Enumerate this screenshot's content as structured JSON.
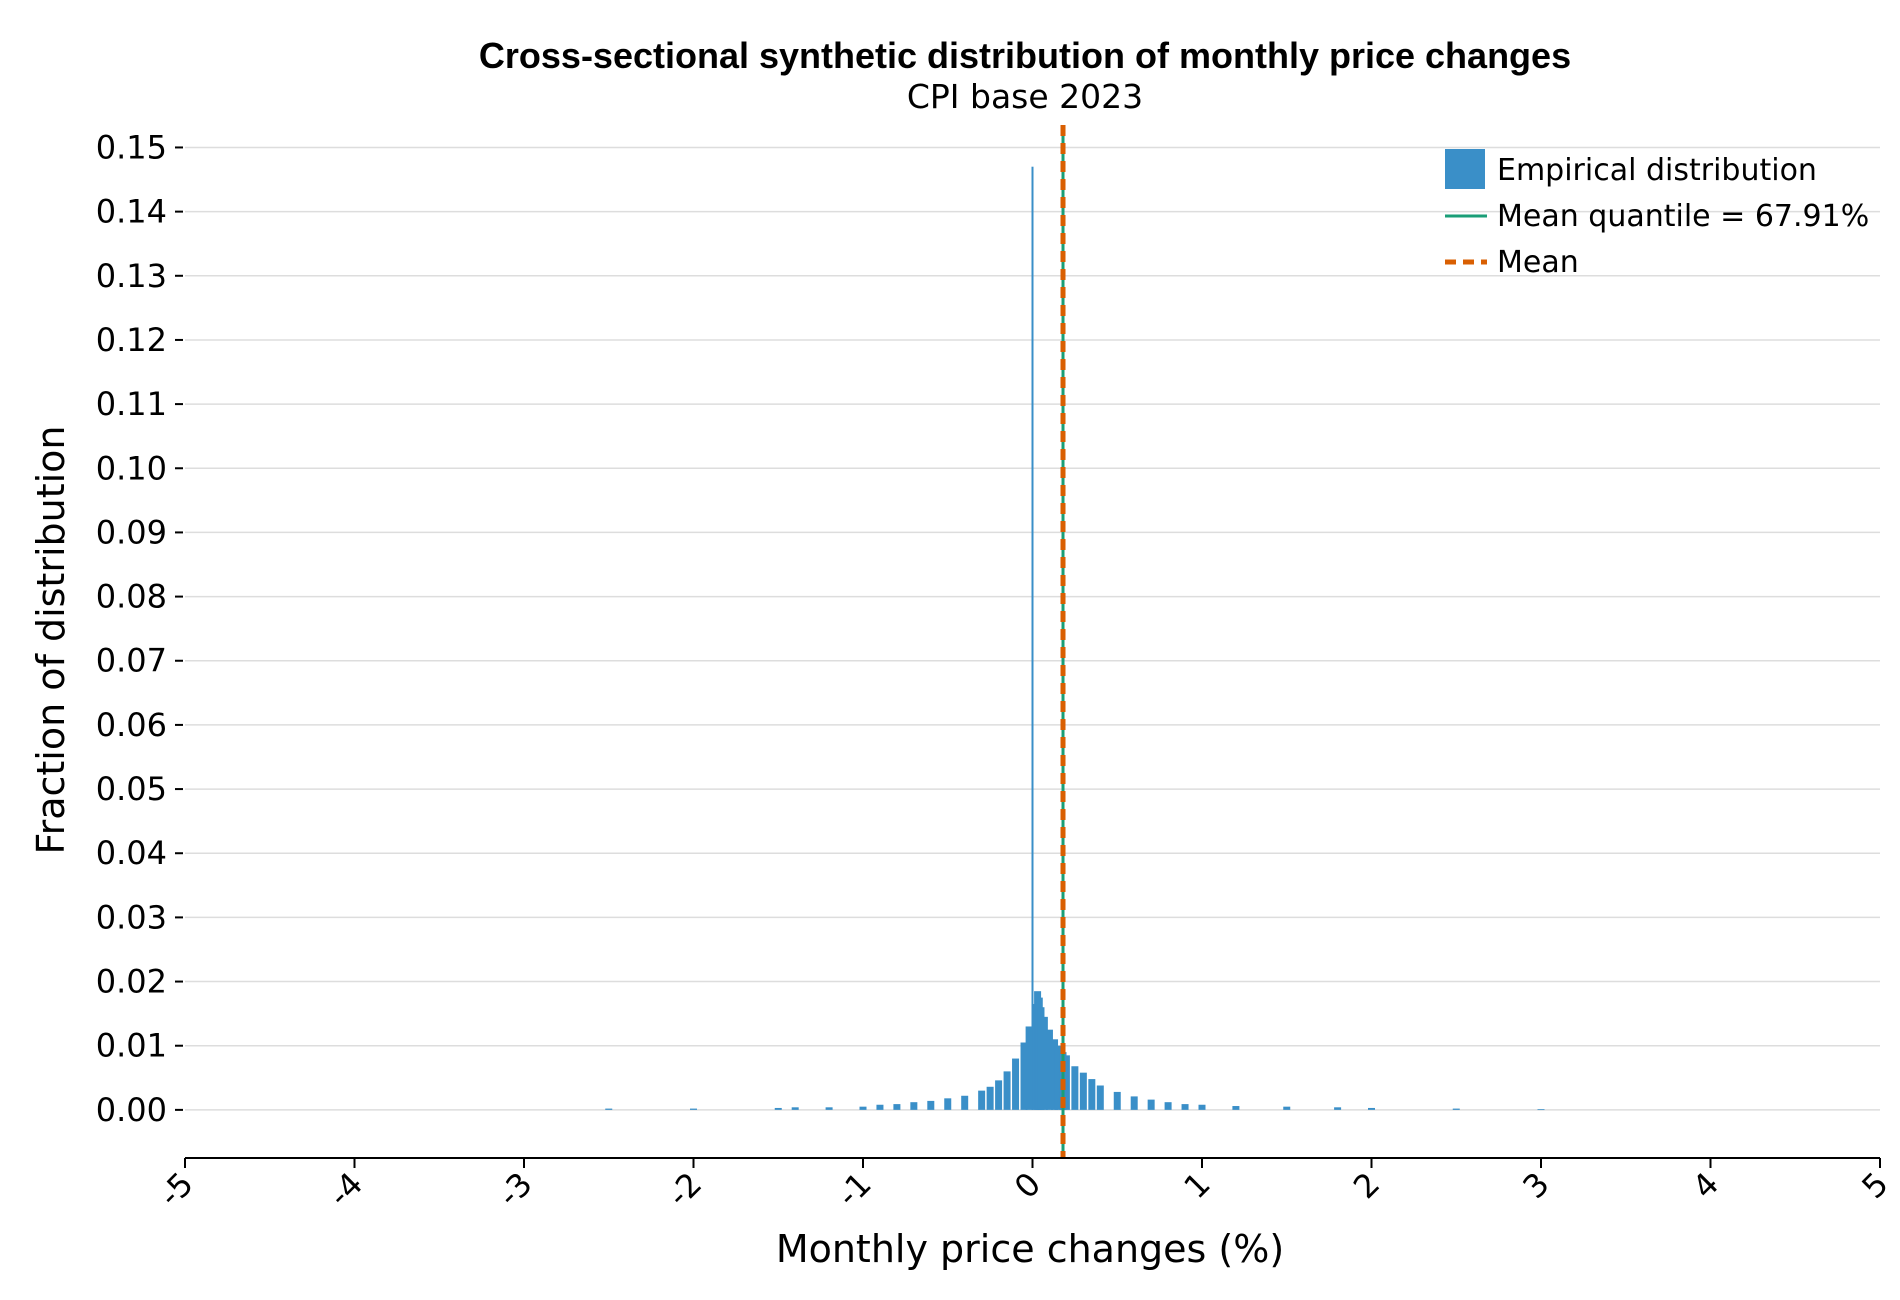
{
  "chart_data": {
    "type": "bar",
    "title": "Cross-sectional synthetic distribution of monthly price changes",
    "subtitle": "CPI base 2023",
    "xlabel": "Monthly price changes (%)",
    "ylabel": "Fraction of distribution",
    "xlim": [
      -5,
      5
    ],
    "ylim": [
      -0.0075,
      0.1535
    ],
    "x_ticks": [
      "-5",
      "-4",
      "-3",
      "-2",
      "-1",
      "0",
      "1",
      "2",
      "3",
      "4",
      "5"
    ],
    "x_tick_values": [
      -5,
      -4,
      -3,
      -2,
      -1,
      0,
      1,
      2,
      3,
      4,
      5
    ],
    "y_ticks": [
      "0.00",
      "0.01",
      "0.02",
      "0.03",
      "0.04",
      "0.05",
      "0.06",
      "0.07",
      "0.08",
      "0.09",
      "0.10",
      "0.11",
      "0.12",
      "0.13",
      "0.14",
      "0.15"
    ],
    "y_tick_values": [
      0,
      0.01,
      0.02,
      0.03,
      0.04,
      0.05,
      0.06,
      0.07,
      0.08,
      0.09,
      0.1,
      0.11,
      0.12,
      0.13,
      0.14,
      0.15
    ],
    "grid": "horizontal",
    "legend_position": "top-right",
    "series": [
      {
        "name": "Empirical distribution",
        "kind": "histogram",
        "color": "#3a8fc8",
        "x": [
          -2.5,
          -2.0,
          -1.5,
          -1.4,
          -1.2,
          -1.0,
          -0.9,
          -0.8,
          -0.7,
          -0.6,
          -0.5,
          -0.4,
          -0.3,
          -0.25,
          -0.2,
          -0.15,
          -0.1,
          -0.05,
          -0.02,
          0.0,
          0.02,
          0.03,
          0.04,
          0.05,
          0.07,
          0.1,
          0.13,
          0.15,
          0.18,
          0.2,
          0.25,
          0.3,
          0.35,
          0.4,
          0.5,
          0.6,
          0.7,
          0.8,
          0.9,
          1.0,
          1.2,
          1.5,
          1.8,
          2.0,
          2.5,
          3.0
        ],
        "values": [
          0.0002,
          0.0002,
          0.0003,
          0.0004,
          0.0004,
          0.0005,
          0.0008,
          0.0009,
          0.0012,
          0.0014,
          0.0018,
          0.0022,
          0.003,
          0.0036,
          0.0046,
          0.006,
          0.008,
          0.0105,
          0.013,
          0.147,
          0.0165,
          0.0185,
          0.0175,
          0.016,
          0.0145,
          0.0125,
          0.011,
          0.01,
          0.009,
          0.0085,
          0.0068,
          0.0058,
          0.0048,
          0.0038,
          0.0028,
          0.0021,
          0.0016,
          0.0012,
          0.0009,
          0.0008,
          0.0006,
          0.0005,
          0.0004,
          0.0003,
          0.0002,
          0.0001
        ]
      },
      {
        "name": "Mean quantile = 67.91%",
        "kind": "vline",
        "color": "#1a9e77",
        "x": 0.18
      },
      {
        "name": "Mean",
        "kind": "vline-dashed",
        "color": "#d95f02",
        "x": 0.18
      }
    ]
  }
}
